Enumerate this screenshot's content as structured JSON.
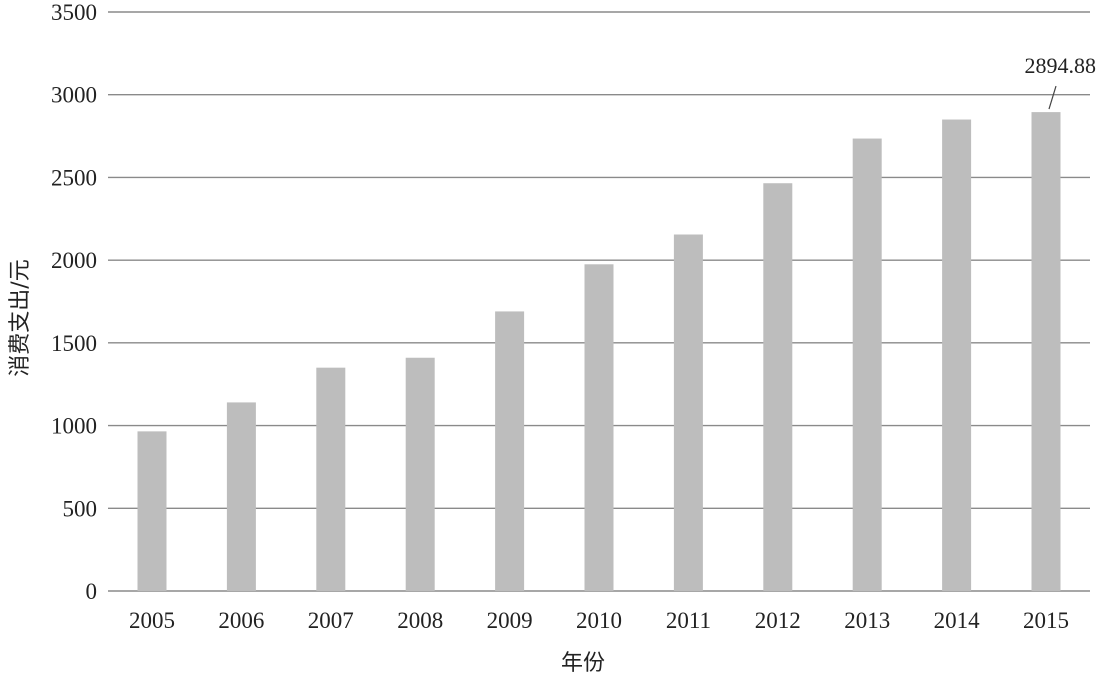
{
  "chart_data": {
    "type": "bar",
    "categories": [
      "2005",
      "2006",
      "2007",
      "2008",
      "2009",
      "2010",
      "2011",
      "2012",
      "2013",
      "2014",
      "2015"
    ],
    "values": [
      965,
      1140,
      1350,
      1410,
      1690,
      1975,
      2155,
      2465,
      2735,
      2850,
      2894.88
    ],
    "xlabel": "年份",
    "ylabel": "消费支出/元",
    "ylim": [
      0,
      3500
    ],
    "yticks": [
      "0",
      "500",
      "1000",
      "1500",
      "2000",
      "2500",
      "3000",
      "3500"
    ],
    "grid": true,
    "annotation": {
      "category": "2015",
      "text": "2894.88"
    },
    "colors": {
      "bar": "#bdbdbd",
      "grid": "#8a8a8a",
      "text": "#222222"
    }
  }
}
